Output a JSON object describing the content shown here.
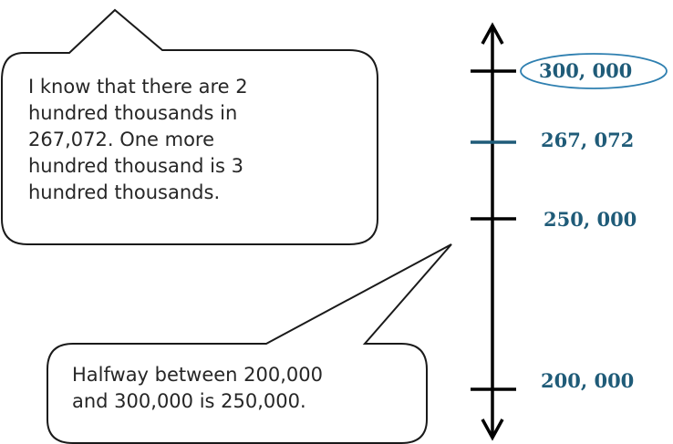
{
  "number_line": {
    "ticks": [
      {
        "value": 300000,
        "label": "300, 000",
        "circled": true,
        "color": "#000000"
      },
      {
        "value": 267072,
        "label": "267, 072",
        "circled": false,
        "color": "#1f5b78"
      },
      {
        "value": 250000,
        "label": "250, 000",
        "circled": false,
        "color": "#000000"
      },
      {
        "value": 200000,
        "label": "200, 000",
        "circled": false,
        "color": "#000000"
      }
    ],
    "arrows": "both-ends",
    "label_color": "#1f5b78",
    "highlight_color": "#2e7fb0"
  },
  "bubbles": {
    "top": {
      "lines": [
        "I know that there are 2",
        "hundred thousands in",
        "267,072.  One more",
        "hundred thousand is 3",
        "hundred thousands."
      ]
    },
    "bottom": {
      "lines": [
        "Halfway between 200,000",
        "and 300,000 is 250,000."
      ]
    }
  }
}
